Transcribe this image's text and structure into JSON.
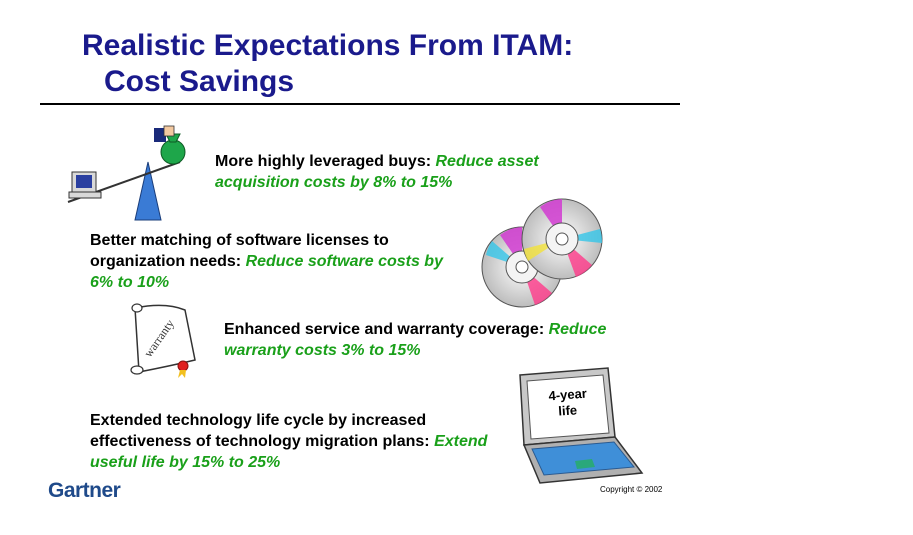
{
  "slide": {
    "title_line1": "Realistic Expectations From ITAM:",
    "title_line2": "Cost Savings"
  },
  "items": [
    {
      "lead": "More highly leveraged buys: ",
      "benefit": "Reduce asset acquisition costs by 8% to 15%"
    },
    {
      "lead": "Better matching of software licenses to organization needs: ",
      "benefit": "Reduce software costs by 6% to 10%"
    },
    {
      "lead": "Enhanced service and warranty coverage: ",
      "benefit": "Reduce warranty costs 3% to 15%"
    },
    {
      "lead": "Extended technology life cycle by increased effectiveness of technology migration plans: ",
      "benefit": "Extend useful life by 15% to 25%"
    }
  ],
  "illustrations": {
    "warranty_text": "warranty",
    "laptop_screen_line1": "4-year",
    "laptop_screen_line2": "life"
  },
  "footer": {
    "brand": "Gartner",
    "copyright": "Copyright © 2002"
  },
  "colors": {
    "title": "#1a1a8c",
    "benefit": "#1aa01a",
    "brand": "#1f4a8a"
  }
}
